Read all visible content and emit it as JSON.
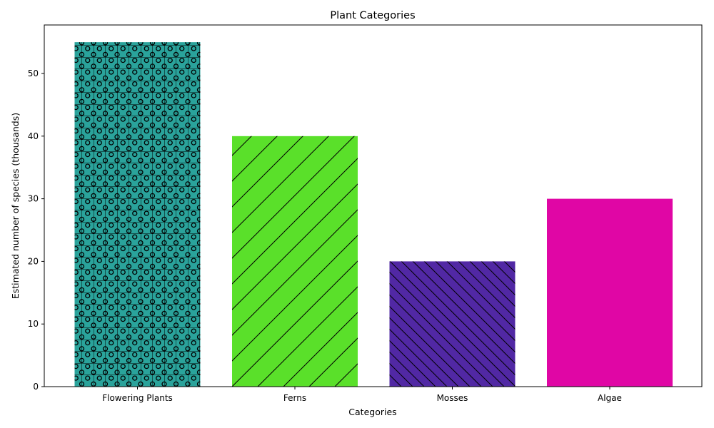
{
  "chart_data": {
    "type": "bar",
    "title": "Plant Categories",
    "xlabel": "Categories",
    "ylabel": "Estimated number of species (thousands)",
    "categories": [
      "Flowering Plants",
      "Ferns",
      "Mosses",
      "Algae"
    ],
    "values": [
      55,
      40,
      20,
      30
    ],
    "colors": [
      "#2aa39b",
      "#5ae02a",
      "#5128a4",
      "#e006a5"
    ],
    "hatches": [
      "grid-circles",
      "forward-diagonal",
      "back-diagonal",
      "none"
    ],
    "ylim": [
      0,
      57.75
    ],
    "yticks": [
      0,
      10,
      20,
      30,
      40,
      50
    ],
    "grid": false,
    "legend": "none"
  }
}
